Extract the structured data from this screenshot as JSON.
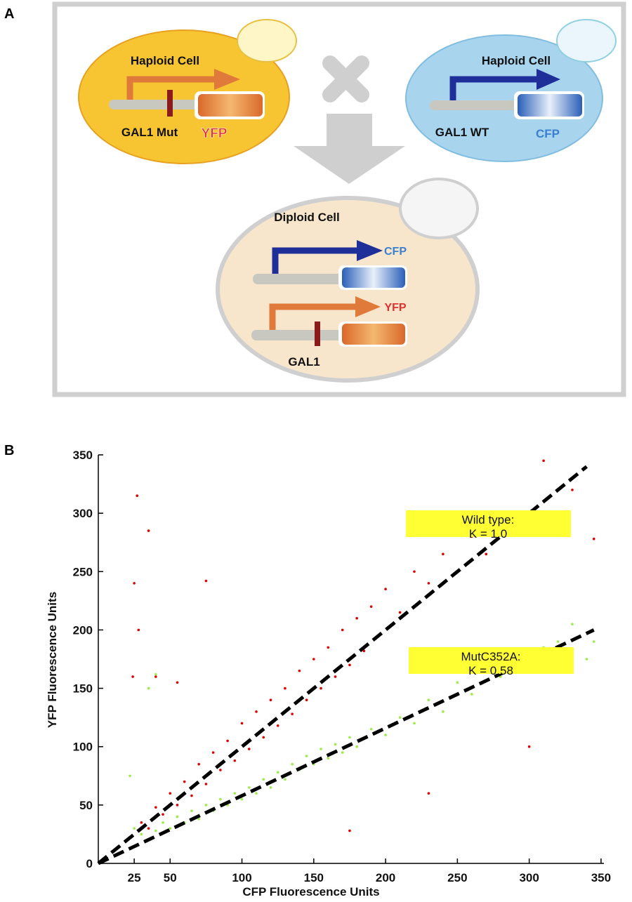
{
  "panel_labels": [
    "A",
    "B"
  ],
  "panel_a": {
    "left_cell": {
      "title": "Haploid Cell",
      "gene": "GAL1 Mut",
      "reporter": "YFP"
    },
    "right_cell": {
      "title": "Haploid Cell",
      "gene": "GAL1 WT",
      "reporter": "CFP"
    },
    "diploid_cell": {
      "title": "Diploid Cell",
      "top_reporter": "CFP",
      "bottom_reporter": "YFP",
      "gene": "GAL1"
    }
  },
  "chart_data": {
    "type": "scatter",
    "x_label": "CFP Fluorescence Units",
    "y_label": "YFP Fluorescence Units",
    "xlim": [
      0,
      352
    ],
    "ylim": [
      0,
      350
    ],
    "xticks": [
      25,
      50,
      100,
      150,
      200,
      250,
      300,
      350
    ],
    "yticks": [
      0,
      50,
      100,
      150,
      200,
      250,
      300,
      350
    ],
    "series": [
      {
        "color": "#e00000",
        "x": [
          30,
          35,
          40,
          45,
          50,
          55,
          60,
          65,
          70,
          75,
          80,
          85,
          90,
          95,
          100,
          105,
          110,
          115,
          120,
          125,
          130,
          135,
          140,
          145,
          150,
          155,
          160,
          165,
          170,
          175,
          180,
          185,
          190,
          195,
          200,
          210,
          220,
          230,
          240,
          250,
          260,
          270,
          280,
          290,
          310,
          330,
          345,
          25,
          27,
          35,
          28,
          75,
          24,
          40,
          55,
          230,
          175,
          300
        ],
        "values": [
          35,
          30,
          48,
          42,
          60,
          50,
          70,
          58,
          85,
          68,
          95,
          80,
          105,
          88,
          120,
          98,
          130,
          108,
          140,
          118,
          150,
          128,
          165,
          140,
          175,
          150,
          185,
          160,
          200,
          170,
          210,
          182,
          220,
          195,
          235,
          215,
          250,
          240,
          265,
          250,
          280,
          265,
          300,
          290,
          345,
          320,
          278,
          240,
          315,
          285,
          200,
          242,
          160,
          160,
          155,
          60,
          28,
          100
        ]
      },
      {
        "color": "#99ee44",
        "x": [
          25,
          30,
          40,
          45,
          50,
          55,
          60,
          65,
          70,
          75,
          80,
          85,
          90,
          95,
          100,
          105,
          110,
          115,
          120,
          125,
          130,
          135,
          140,
          145,
          150,
          155,
          160,
          165,
          170,
          175,
          180,
          190,
          200,
          210,
          220,
          230,
          240,
          250,
          260,
          270,
          280,
          290,
          300,
          310,
          320,
          330,
          340,
          345,
          22,
          35,
          40
        ],
        "values": [
          30,
          25,
          28,
          35,
          30,
          40,
          35,
          45,
          38,
          50,
          45,
          55,
          50,
          60,
          55,
          65,
          60,
          72,
          65,
          78,
          72,
          85,
          80,
          92,
          85,
          98,
          90,
          102,
          95,
          108,
          100,
          115,
          110,
          125,
          120,
          140,
          130,
          155,
          145,
          165,
          160,
          175,
          175,
          185,
          190,
          205,
          175,
          190,
          75,
          150,
          162
        ]
      }
    ],
    "lines": [
      {
        "color": "#000000",
        "dashed": true,
        "x": [
          0,
          340
        ],
        "values": [
          0,
          340
        ]
      },
      {
        "color": "#000000",
        "dashed": true,
        "x": [
          0,
          345
        ],
        "values": [
          0,
          200
        ]
      }
    ],
    "annotations": [
      [
        "Wild type:",
        "K = 1.0"
      ],
      [
        "MutC352A:",
        "K = 0.58"
      ]
    ]
  }
}
